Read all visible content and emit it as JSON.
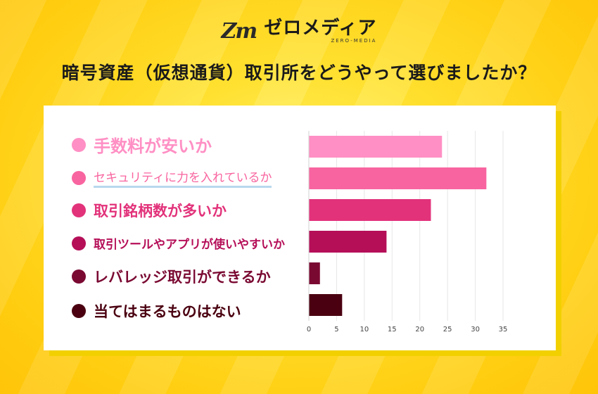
{
  "logo": {
    "mark": "Zm",
    "name": "ゼロメディア",
    "subtitle": "ZERO-MEDIA"
  },
  "headline": "暗号資産（仮想通貨）取引所をどうやって選びましたか？",
  "colors": {
    "background": "#ffd21a",
    "series": [
      "#ff8fc4",
      "#f8649f",
      "#e2327a",
      "#b50f58",
      "#7a0932",
      "#4a0010"
    ]
  },
  "chart_data": {
    "type": "bar",
    "orientation": "horizontal",
    "categories": [
      "手数料が安いか",
      "セキュリティに力を入れているか",
      "取引銘柄数が多いか",
      "取引ツールやアプリが使いやすいか",
      "レバレッジ取引ができるか",
      "当てはまるものはない"
    ],
    "values": [
      24,
      32,
      22,
      14,
      2,
      6
    ],
    "xlim": [
      0,
      35
    ],
    "xticks": [
      "0",
      "5",
      "10",
      "15",
      "20",
      "25",
      "30",
      "35"
    ],
    "grid": true,
    "legend_position": "left"
  }
}
